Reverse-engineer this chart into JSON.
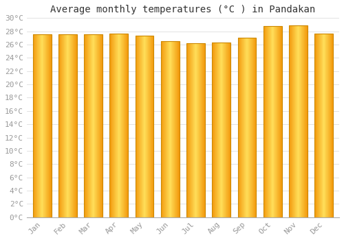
{
  "title": "Average monthly temperatures (°C ) in Pandakan",
  "months": [
    "Jan",
    "Feb",
    "Mar",
    "Apr",
    "May",
    "Jun",
    "Jul",
    "Aug",
    "Sep",
    "Oct",
    "Nov",
    "Dec"
  ],
  "values": [
    27.5,
    27.5,
    27.5,
    27.7,
    27.3,
    26.5,
    26.2,
    26.3,
    27.0,
    28.8,
    28.9,
    27.7
  ],
  "bar_color_center": "#FFD966",
  "bar_color_edge": "#E8960A",
  "bar_border_color": "#CC8800",
  "ylim": [
    0,
    30
  ],
  "ytick_step": 2,
  "background_color": "#FFFFFF",
  "grid_color": "#DDDDDD",
  "title_fontsize": 10,
  "tick_fontsize": 8,
  "tick_label_color": "#999999",
  "title_color": "#333333",
  "bar_width": 0.72
}
